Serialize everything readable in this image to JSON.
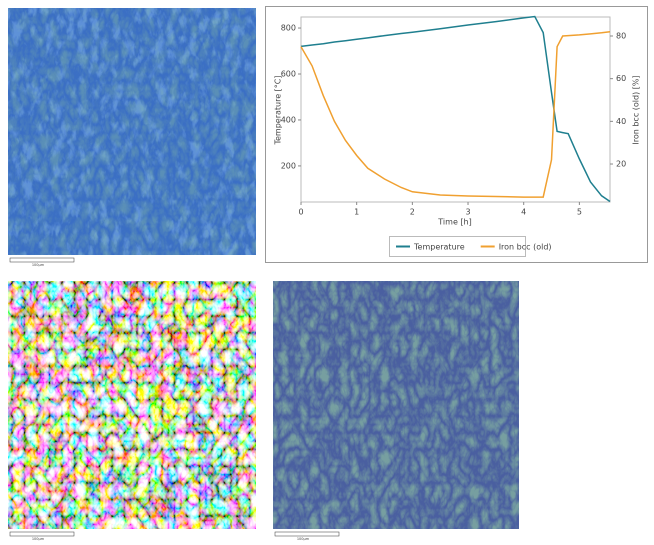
{
  "chart_data": {
    "type": "line",
    "xlabel": "Time [h]",
    "ylabel": "Temperature [°C]",
    "y2label": "Iron bcc (old) [%]",
    "x": [
      0,
      0.2,
      0.4,
      0.6,
      0.8,
      1.0,
      1.2,
      1.5,
      1.8,
      2.0,
      2.5,
      3.0,
      3.5,
      4.0,
      4.2,
      4.35,
      4.5,
      4.6,
      4.7,
      4.8,
      5.0,
      5.2,
      5.4,
      5.55
    ],
    "series": [
      {
        "name": "Temperature",
        "color": "#1f7f8f",
        "values": [
          720,
          726,
          732,
          739,
          745,
          751,
          757,
          767,
          776,
          782,
          797,
          813,
          828,
          844,
          850,
          780,
          520,
          350,
          345,
          340,
          230,
          130,
          70,
          45
        ]
      },
      {
        "name": "Iron bcc (old)",
        "color": "#f0a030",
        "axis": "y2",
        "values": [
          75,
          66,
          52,
          40,
          31,
          24,
          18,
          13,
          9,
          7,
          5.5,
          5,
          4.8,
          4.5,
          4.5,
          4.5,
          22,
          75,
          80,
          80.2,
          80.5,
          81,
          81.5,
          82
        ]
      }
    ],
    "xlim": [
      0,
      5.55
    ],
    "xticks": [
      0,
      1,
      2,
      3,
      4,
      5
    ],
    "ylim": [
      43,
      848
    ],
    "yticks": [
      200,
      400,
      600,
      800
    ],
    "y2lim": [
      2.2,
      88.9
    ],
    "y2ticks": [
      20,
      40,
      60,
      80
    ],
    "legend": "bottom"
  },
  "micrographs": [
    {
      "scale_label": "100μm"
    },
    {
      "scale_label": "100μm"
    },
    {
      "scale_label": "100μm"
    }
  ]
}
